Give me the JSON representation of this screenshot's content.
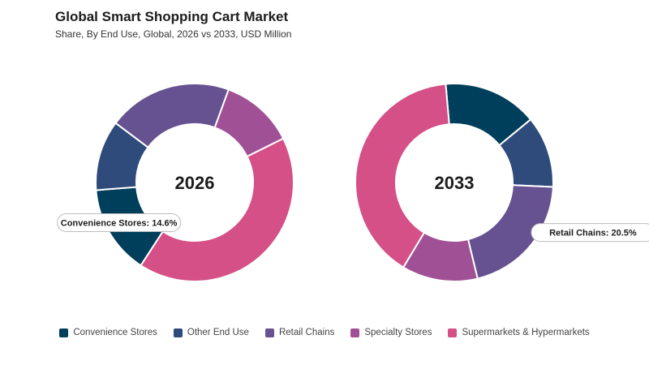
{
  "title": "Global Smart Shopping Cart Market",
  "subtitle": "Share, By End Use, Global, 2026 vs 2033, USD Million",
  "legend": [
    {
      "label": "Convenience Stores",
      "color": "#003f5c"
    },
    {
      "label": "Other End Use",
      "color": "#2f4b7c"
    },
    {
      "label": "Retail Chains",
      "color": "#665191"
    },
    {
      "label": "Specialty Stores",
      "color": "#a05195"
    },
    {
      "label": "Supermarkets & Hypermarkets",
      "color": "#d45087"
    }
  ],
  "chart_data": [
    {
      "type": "pie",
      "center_label": "2026",
      "categories": [
        "Convenience Stores",
        "Other End Use",
        "Retail Chains",
        "Specialty Stores",
        "Supermarkets & Hypermarkets"
      ],
      "values": [
        14.6,
        11.5,
        20.3,
        12.1,
        41.5
      ],
      "callout": {
        "category": "Convenience Stores",
        "text": "Convenience Stores: 14.6%"
      }
    },
    {
      "type": "pie",
      "center_label": "2033",
      "categories": [
        "Convenience Stores",
        "Other End Use",
        "Retail Chains",
        "Specialty Stores",
        "Supermarkets & Hypermarkets"
      ],
      "values": [
        15.4,
        11.7,
        20.5,
        12.4,
        40.0
      ],
      "callout": {
        "category": "Retail Chains",
        "text": "Retail Chains: 20.5%"
      }
    }
  ]
}
